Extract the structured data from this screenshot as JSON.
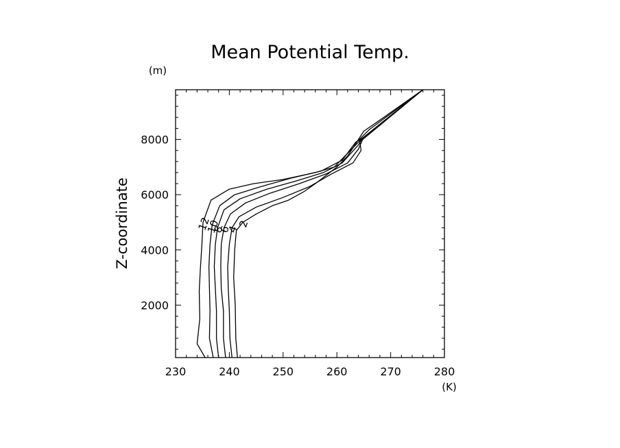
{
  "chart_data": {
    "type": "line",
    "title": "Mean Potential Temp.",
    "xlabel": "",
    "ylabel": "Z-coordinate",
    "x_unit": "(K)",
    "y_unit": "(m)",
    "xlim": [
      230,
      280
    ],
    "ylim": [
      100,
      9800
    ],
    "xticks": [
      230,
      240,
      250,
      260,
      270,
      280
    ],
    "yticks": [
      2000,
      4000,
      6000,
      8000
    ],
    "grid": false,
    "series": [
      {
        "label": "2",
        "points": [
          [
            241.5,
            100
          ],
          [
            241.2,
            800
          ],
          [
            241.1,
            2000
          ],
          [
            240.8,
            3000
          ],
          [
            241.0,
            4000
          ],
          [
            241.3,
            4700
          ],
          [
            242.5,
            5000
          ],
          [
            245,
            5300
          ],
          [
            248,
            5600
          ],
          [
            251,
            5800
          ],
          [
            253.8,
            6100
          ],
          [
            256,
            6400
          ],
          [
            258,
            6700
          ],
          [
            260,
            7000
          ],
          [
            262,
            7400
          ],
          [
            264,
            8000
          ],
          [
            265,
            8300
          ],
          [
            268,
            8700
          ],
          [
            276,
            9800
          ]
        ]
      },
      {
        "label": "4",
        "points": [
          [
            240.5,
            100
          ],
          [
            240.1,
            800
          ],
          [
            240.0,
            1800
          ],
          [
            239.8,
            2600
          ],
          [
            239.7,
            3400
          ],
          [
            240.0,
            4200
          ],
          [
            240.5,
            4800
          ],
          [
            241.8,
            5200
          ],
          [
            245,
            5550
          ],
          [
            250,
            5900
          ],
          [
            255,
            6300
          ],
          [
            259,
            6750
          ],
          [
            263,
            7150
          ],
          [
            264.5,
            7600
          ],
          [
            264.2,
            8000
          ],
          [
            266,
            8350
          ],
          [
            276,
            9800
          ]
        ]
      },
      {
        "label": "6",
        "points": [
          [
            239.3,
            100
          ],
          [
            238.9,
            800
          ],
          [
            238.9,
            1800
          ],
          [
            238.5,
            2600
          ],
          [
            238.4,
            3400
          ],
          [
            238.5,
            4200
          ],
          [
            239.0,
            4800
          ],
          [
            240.2,
            5300
          ],
          [
            243,
            5700
          ],
          [
            247.5,
            6050
          ],
          [
            253,
            6400
          ],
          [
            258,
            6750
          ],
          [
            262,
            7150
          ],
          [
            264,
            7650
          ],
          [
            264.8,
            8000
          ],
          [
            276,
            9800
          ]
        ]
      },
      {
        "label": "8",
        "points": [
          [
            238.0,
            100
          ],
          [
            237.6,
            800
          ],
          [
            237.6,
            1800
          ],
          [
            237.4,
            2600
          ],
          [
            237.2,
            3400
          ],
          [
            237.4,
            4200
          ],
          [
            237.8,
            4800
          ],
          [
            239.0,
            5450
          ],
          [
            242,
            5850
          ],
          [
            247,
            6200
          ],
          [
            252.5,
            6500
          ],
          [
            257.5,
            6800
          ],
          [
            261,
            7150
          ],
          [
            264,
            7800
          ],
          [
            264.8,
            8050
          ],
          [
            276,
            9800
          ]
        ]
      },
      {
        "label": "10",
        "points": [
          [
            237.0,
            100
          ],
          [
            236.3,
            800
          ],
          [
            236.4,
            1800
          ],
          [
            236.3,
            2600
          ],
          [
            236.2,
            3400
          ],
          [
            236.4,
            4200
          ],
          [
            236.8,
            4900
          ],
          [
            238.2,
            5600
          ],
          [
            241,
            6000
          ],
          [
            246,
            6300
          ],
          [
            251.5,
            6600
          ],
          [
            257,
            6850
          ],
          [
            261,
            7250
          ],
          [
            263.5,
            7900
          ],
          [
            264.8,
            8050
          ],
          [
            276,
            9800
          ]
        ]
      },
      {
        "label": "12",
        "points": [
          [
            235.5,
            100
          ],
          [
            234.0,
            600
          ],
          [
            234.5,
            1500
          ],
          [
            234.4,
            2500
          ],
          [
            234.6,
            3300
          ],
          [
            234.9,
            4200
          ],
          [
            235.1,
            5000
          ],
          [
            236.6,
            5800
          ],
          [
            240,
            6200
          ],
          [
            244.5,
            6400
          ],
          [
            250,
            6550
          ],
          [
            256,
            6800
          ],
          [
            259.5,
            7000
          ],
          [
            262,
            7500
          ],
          [
            264.5,
            8000
          ],
          [
            276,
            9800
          ]
        ]
      }
    ]
  }
}
